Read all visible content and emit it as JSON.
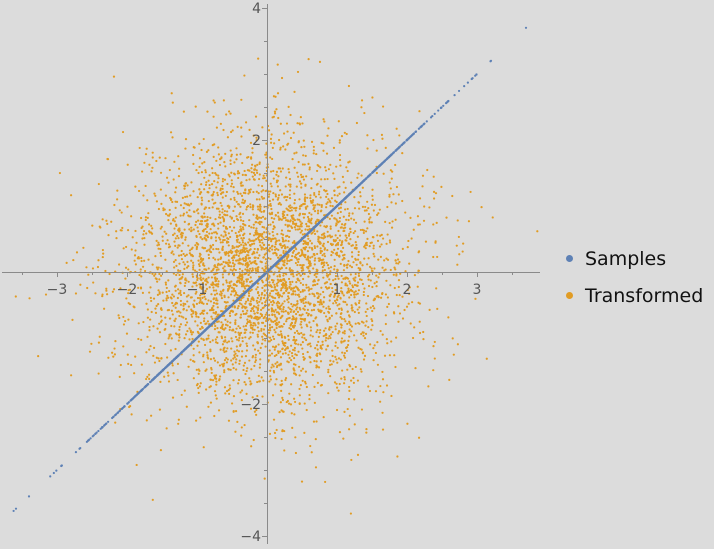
{
  "chart_data": {
    "type": "scatter",
    "title": "",
    "xlabel": "",
    "ylabel": "",
    "xlim": [
      -3.75,
      3.8
    ],
    "ylim": [
      -4.0,
      4.0
    ],
    "x_ticks": [
      -3,
      -2,
      -1,
      1,
      2,
      3
    ],
    "y_ticks": [
      -4,
      -2,
      2,
      4
    ],
    "grid": false,
    "legend_position": "right",
    "series": [
      {
        "name": "Samples",
        "color": "#5e81b5",
        "description": "points lie on the line y = x",
        "x_range": [
          -3.62,
          3.7
        ],
        "relation": "y = x",
        "n_points": 2000
      },
      {
        "name": "Transformed",
        "color": "#e19c24",
        "description": "isotropic standard-normal cloud",
        "center": [
          0,
          0
        ],
        "std": [
          1.0,
          1.0
        ],
        "n_points": 4000
      }
    ]
  },
  "legend": {
    "items": [
      {
        "label": "Samples",
        "color": "#5e81b5"
      },
      {
        "label": "Transformed",
        "color": "#e19c24"
      }
    ]
  }
}
